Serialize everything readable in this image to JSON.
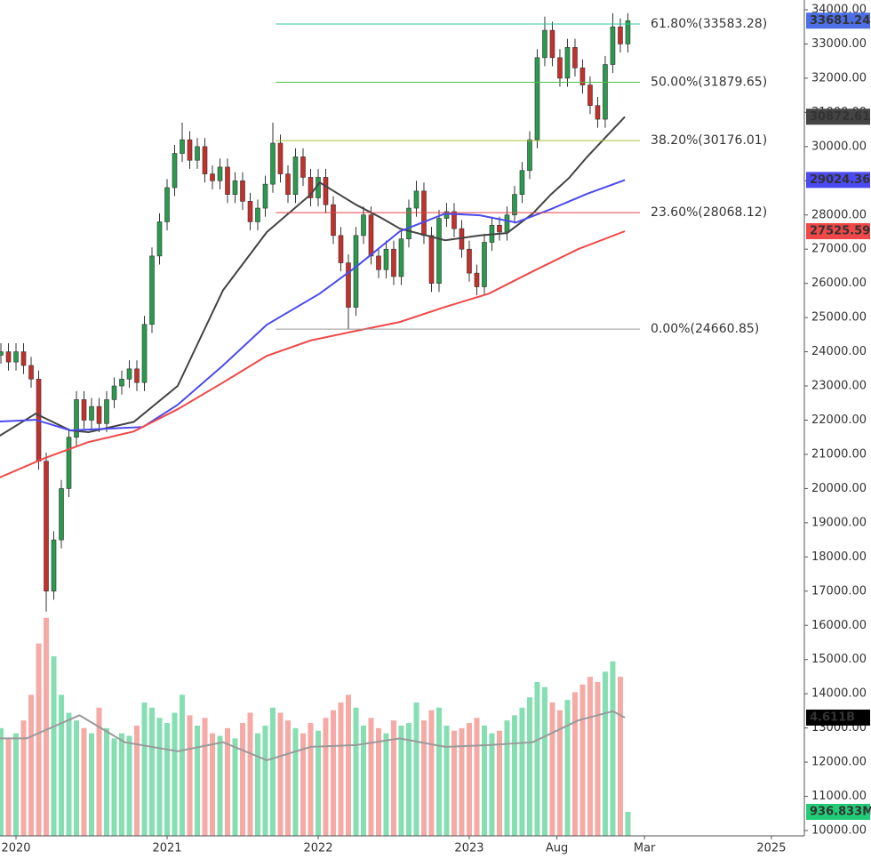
{
  "chart_data": {
    "type": "candlestick",
    "x": [
      2019.9,
      2019.95,
      2020,
      2020.05,
      2020.1,
      2020.15,
      2020.2,
      2020.25,
      2020.3,
      2020.35,
      2020.4,
      2020.45,
      2020.5,
      2020.55,
      2020.6,
      2020.65,
      2020.7,
      2020.75,
      2020.8,
      2020.85,
      2020.9,
      2020.95,
      2021,
      2021.05,
      2021.1,
      2021.15,
      2021.2,
      2021.25,
      2021.3,
      2021.35,
      2021.4,
      2021.45,
      2021.5,
      2021.55,
      2021.6,
      2021.65,
      2021.7,
      2021.75,
      2021.8,
      2021.85,
      2021.9,
      2021.95,
      2022,
      2022.05,
      2022.1,
      2022.15,
      2022.2,
      2022.25,
      2022.3,
      2022.35,
      2022.4,
      2022.45,
      2022.5,
      2022.55,
      2022.6,
      2022.65,
      2022.7,
      2022.75,
      2022.8,
      2022.85,
      2022.9,
      2022.95,
      2023,
      2023.05,
      2023.1,
      2023.15,
      2023.2,
      2023.25,
      2023.3,
      2023.35,
      2023.4,
      2023.45,
      2023.5,
      2023.55,
      2023.6,
      2023.65,
      2023.7,
      2023.75,
      2023.8,
      2023.85,
      2023.9,
      2023.95,
      2024,
      2024.05
    ],
    "open": [
      23900,
      24000,
      23700,
      24000,
      23600,
      23200,
      20800,
      17000,
      18500,
      20000,
      21500,
      22600,
      22000,
      22400,
      21900,
      22600,
      23000,
      23200,
      23500,
      23100,
      24800,
      26800,
      27800,
      28800,
      29800,
      30200,
      29600,
      30000,
      29200,
      29000,
      29400,
      28600,
      29000,
      28400,
      27800,
      28200,
      28900,
      30100,
      29200,
      28600,
      29700,
      29100,
      28500,
      29100,
      28300,
      27400,
      26600,
      25300,
      27400,
      28000,
      26800,
      26400,
      27000,
      26200,
      27300,
      28200,
      28700,
      27400,
      26000,
      27900,
      28100,
      27600,
      27000,
      26300,
      25900,
      27200,
      27700,
      27500,
      28000,
      28600,
      29300,
      30200,
      32600,
      33400,
      32600,
      32000,
      32900,
      32300,
      31800,
      31200,
      30800,
      32400,
      33500,
      33000
    ],
    "high": [
      24250,
      24250,
      24250,
      24250,
      23850,
      23450,
      21050,
      18750,
      20250,
      21750,
      22850,
      22850,
      22650,
      22650,
      22850,
      23250,
      23450,
      23750,
      23750,
      25050,
      27050,
      28050,
      29050,
      30050,
      30700,
      30450,
      30250,
      30250,
      29450,
      29650,
      29650,
      29250,
      29250,
      28650,
      28450,
      29150,
      30700,
      30350,
      29450,
      29950,
      29950,
      29350,
      29350,
      29350,
      28550,
      27650,
      26850,
      27650,
      28250,
      28250,
      27050,
      27250,
      27250,
      27550,
      28450,
      29000,
      28950,
      27650,
      28150,
      28350,
      28350,
      27850,
      27250,
      26550,
      27450,
      27950,
      27950,
      28250,
      28850,
      29550,
      30450,
      32850,
      33800,
      33650,
      32850,
      33150,
      33150,
      32550,
      32050,
      31450,
      32650,
      33900,
      33750,
      33900
    ],
    "low": [
      23650,
      23450,
      23450,
      23350,
      22950,
      20550,
      16400,
      16750,
      18250,
      19750,
      21250,
      21750,
      21750,
      21650,
      21650,
      22350,
      22750,
      22950,
      22850,
      22850,
      24550,
      26550,
      27550,
      28550,
      29550,
      29350,
      29350,
      28950,
      28750,
      28750,
      28350,
      28350,
      28150,
      27550,
      27550,
      27950,
      28650,
      28950,
      28350,
      28350,
      28850,
      28250,
      28250,
      28050,
      27150,
      26350,
      24660.85,
      25050,
      27150,
      26550,
      26150,
      26150,
      25950,
      25950,
      27050,
      27950,
      27150,
      25750,
      25750,
      27650,
      27350,
      26750,
      26050,
      25650,
      25650,
      26950,
      27250,
      27250,
      27750,
      28350,
      29050,
      29950,
      32350,
      32350,
      31750,
      31750,
      32050,
      31550,
      30950,
      30550,
      30550,
      32150,
      32750,
      32750
    ],
    "close": [
      24000,
      23700,
      24000,
      23600,
      23200,
      20800,
      17000,
      18500,
      20000,
      21500,
      22600,
      22000,
      22400,
      21900,
      22600,
      23000,
      23200,
      23500,
      23100,
      24800,
      26800,
      27800,
      28800,
      29800,
      30200,
      29600,
      30000,
      29200,
      29000,
      29400,
      28600,
      29000,
      28400,
      27800,
      28200,
      28900,
      30100,
      29200,
      28600,
      29700,
      29100,
      28500,
      29100,
      28300,
      27400,
      26600,
      25300,
      27400,
      28000,
      26800,
      26400,
      27000,
      26200,
      27300,
      28200,
      28700,
      27400,
      26000,
      27900,
      28100,
      27600,
      27000,
      26300,
      25900,
      27200,
      27700,
      27500,
      28000,
      28600,
      29300,
      30200,
      32600,
      33400,
      32600,
      32000,
      32900,
      32300,
      31800,
      31200,
      30800,
      32400,
      33500,
      33000,
      33681.24
    ],
    "up_color": "#2a9a4e",
    "down_color": "#c4302b",
    "price_label_color": "#4c6fe6",
    "xlim": [
      2019.894,
      2025.218
    ],
    "ylim": [
      10000,
      34000
    ],
    "xticks": [
      2020,
      2021,
      2022,
      2023,
      {
        "value": 2023.58,
        "label": "Aug"
      },
      {
        "value": 2024.16,
        "label": "Mar"
      },
      2025
    ],
    "yticks": [
      {
        "value": 10000,
        "label": "10000.00"
      },
      {
        "value": 11000,
        "label": "11000.00"
      },
      {
        "value": 12000,
        "label": "12000.00"
      },
      {
        "value": 13000,
        "label": "13000.00"
      },
      {
        "value": 14000,
        "label": "14000.00"
      },
      {
        "value": 15000,
        "label": "15000.00"
      },
      {
        "value": 16000,
        "label": "16000.00"
      },
      {
        "value": 17000,
        "label": "17000.00"
      },
      {
        "value": 18000,
        "label": "18000.00"
      },
      {
        "value": 19000,
        "label": "19000.00"
      },
      {
        "value": 20000,
        "label": "20000.00"
      },
      {
        "value": 21000,
        "label": "21000.00"
      },
      {
        "value": 22000,
        "label": "22000.00"
      },
      {
        "value": 23000,
        "label": "23000.00"
      },
      {
        "value": 24000,
        "label": "24000.00"
      },
      {
        "value": 25000,
        "label": "25000.00"
      },
      {
        "value": 26000,
        "label": "26000.00"
      },
      {
        "value": 27000,
        "label": "27000.00"
      },
      {
        "value": 28000,
        "label": "28000.00"
      },
      {
        "value": 29000,
        "label": "29000.00"
      },
      {
        "value": 30000,
        "label": "30000.00"
      },
      {
        "value": 31000,
        "label": "31000.00"
      },
      {
        "value": 32000,
        "label": "32000.00"
      },
      {
        "value": 33000,
        "label": "33000.00"
      },
      {
        "value": 34000,
        "label": "34000.00"
      }
    ],
    "lines": [
      {
        "color": "#444444",
        "x": [
          2019.89,
          2020.13,
          2020.36,
          2020.48,
          2020.78,
          2021.07,
          2021.37,
          2021.66,
          2021.95,
          2022.01,
          2022.25,
          2022.42,
          2022.54,
          2022.84,
          2023.07,
          2023.25,
          2023.42,
          2023.54,
          2023.66,
          2023.78,
          2024.03
        ],
        "values": [
          21540,
          22190,
          21700,
          21650,
          21950,
          23000,
          25800,
          27500,
          28600,
          28950,
          28300,
          27910,
          27600,
          27260,
          27400,
          27470,
          28040,
          28600,
          29080,
          29700,
          30872.61
        ]
      },
      {
        "color": "#4a4af0",
        "x": [
          2019.89,
          2020.13,
          2020.36,
          2020.84,
          2021.07,
          2021.37,
          2021.66,
          2022.01,
          2022.25,
          2022.54,
          2022.84,
          2023.07,
          2023.31,
          2023.54,
          2023.78,
          2024.03
        ],
        "values": [
          21960,
          22010,
          21700,
          21800,
          22450,
          23600,
          24790,
          25700,
          26480,
          27520,
          28040,
          27990,
          27780,
          28170,
          28620,
          29024.36
        ]
      },
      {
        "color": "#f04848",
        "x": [
          2019.89,
          2020.19,
          2020.48,
          2020.78,
          2021.07,
          2021.37,
          2021.66,
          2021.95,
          2022.25,
          2022.54,
          2022.84,
          2023.13,
          2023.42,
          2023.72,
          2024.03
        ],
        "values": [
          20320,
          20890,
          21360,
          21670,
          22320,
          23100,
          23880,
          24330,
          24610,
          24870,
          25310,
          25700,
          26350,
          27000,
          27525.59
        ]
      }
    ],
    "fib": {
      "x": [
        2021.72,
        2024.13
      ],
      "levels": [
        {
          "value": 33583.28,
          "label": "61.80%(33583.28)",
          "color": "#2fc79c"
        },
        {
          "value": 31879.65,
          "label": "50.00%(31879.65)",
          "color": "#4cc04c"
        },
        {
          "value": 30176.01,
          "label": "38.20%(30176.01)",
          "color": "#a6c43a"
        },
        {
          "value": 28068.12,
          "label": "23.60%(28068.12)",
          "color": "#e04444"
        },
        {
          "value": 24660.85,
          "label": "0.00%(24660.85)",
          "color": "#999999"
        }
      ]
    },
    "volume": {
      "ylim": [
        0,
        32.2
      ],
      "up_color": "#86dfb3",
      "down_color": "#f5aaa6",
      "values": [
        4.2,
        3.8,
        4.0,
        4.5,
        5.5,
        7.5,
        8.5,
        7.0,
        5.5,
        4.8,
        4.5,
        4.2,
        4.0,
        5.0,
        4.2,
        3.8,
        4.0,
        3.9,
        4.3,
        5.2,
        5.0,
        4.6,
        4.4,
        4.8,
        5.5,
        4.7,
        4.3,
        4.6,
        4.0,
        3.9,
        4.2,
        3.8,
        4.4,
        4.8,
        4.0,
        4.3,
        5.0,
        4.8,
        4.5,
        4.2,
        4.0,
        4.4,
        4.1,
        4.6,
        4.9,
        5.2,
        5.5,
        5.0,
        4.3,
        4.6,
        4.2,
        4.0,
        4.5,
        4.3,
        4.4,
        5.2,
        4.5,
        4.9,
        5.0,
        4.3,
        4.1,
        4.2,
        4.4,
        4.6,
        4.3,
        4.0,
        4.1,
        4.5,
        4.7,
        5.0,
        5.4,
        6.0,
        5.8,
        5.2,
        4.9,
        5.3,
        5.6,
        5.9,
        6.2,
        6.0,
        6.4,
        6.8,
        6.2,
        0.936833
      ],
      "last_label": "936.833M",
      "last_label_color": "#22cc77",
      "ma": {
        "color": "#9a9a9a",
        "label_color": "#000000",
        "x": [
          2019.89,
          2020.07,
          2020.42,
          2020.72,
          2021.07,
          2021.37,
          2021.66,
          2021.95,
          2022.25,
          2022.54,
          2022.84,
          2023.13,
          2023.42,
          2023.72,
          2023.95,
          2024.03
        ],
        "values": [
          3.8,
          3.8,
          4.7,
          3.65,
          3.3,
          3.65,
          2.95,
          3.47,
          3.54,
          3.8,
          3.47,
          3.54,
          3.65,
          4.5,
          4.86,
          4.611
        ],
        "last_label": "4.611B"
      }
    }
  }
}
